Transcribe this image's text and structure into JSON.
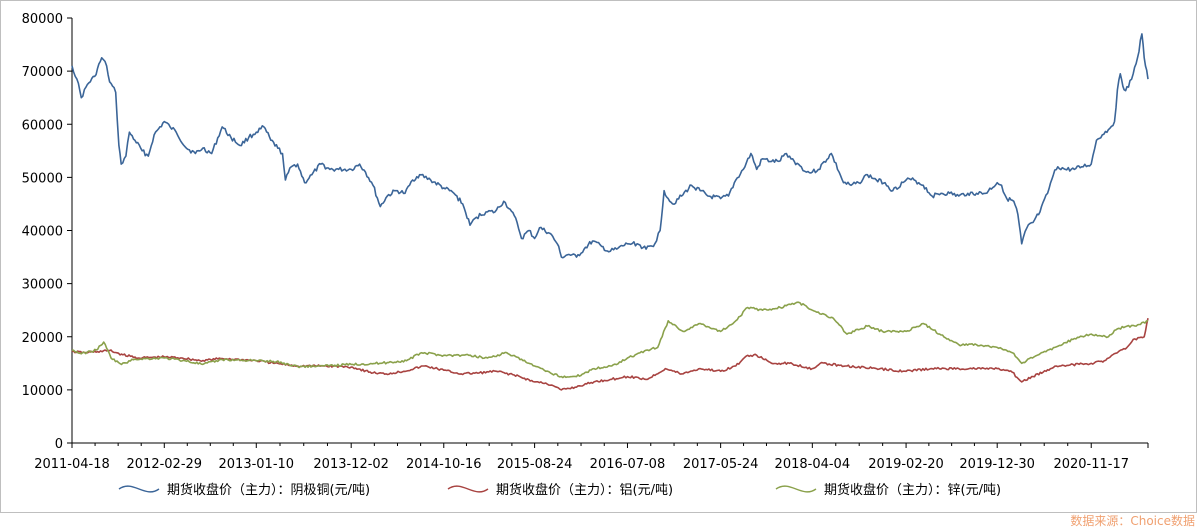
{
  "chart_data": {
    "type": "line",
    "yticks": [
      0,
      10000,
      20000,
      30000,
      40000,
      50000,
      60000,
      70000,
      80000
    ],
    "ylim": [
      0,
      80000
    ],
    "xticks": [
      "2011-04-18",
      "2012-02-29",
      "2013-01-10",
      "2013-12-02",
      "2014-10-16",
      "2015-08-24",
      "2016-07-08",
      "2017-05-24",
      "2018-04-04",
      "2019-02-20",
      "2019-12-30",
      "2020-11-17"
    ],
    "x_start": "2011-04-18",
    "x_end": "2021-05-31",
    "legend_position": "bottom",
    "grid": false,
    "series": [
      {
        "name": "期货收盘价（主力）：阴极铜(元/吨)",
        "color": "#3b6598",
        "points": [
          [
            "2011-04-18",
            71000
          ],
          [
            "2011-05-05",
            68500
          ],
          [
            "2011-05-20",
            65000
          ],
          [
            "2011-06-10",
            67500
          ],
          [
            "2011-07-05",
            69000
          ],
          [
            "2011-07-29",
            72500
          ],
          [
            "2011-08-15",
            71000
          ],
          [
            "2011-08-25",
            68000
          ],
          [
            "2011-09-15",
            66000
          ],
          [
            "2011-09-26",
            56000
          ],
          [
            "2011-10-04",
            52500
          ],
          [
            "2011-10-20",
            54000
          ],
          [
            "2011-11-01",
            58500
          ],
          [
            "2011-11-20",
            57000
          ],
          [
            "2011-12-15",
            55000
          ],
          [
            "2012-01-05",
            54000
          ],
          [
            "2012-01-25",
            58000
          ],
          [
            "2012-02-29",
            60500
          ],
          [
            "2012-03-20",
            59500
          ],
          [
            "2012-04-10",
            58500
          ],
          [
            "2012-05-15",
            55500
          ],
          [
            "2012-06-15",
            54500
          ],
          [
            "2012-07-10",
            55500
          ],
          [
            "2012-08-10",
            54500
          ],
          [
            "2012-09-15",
            59500
          ],
          [
            "2012-10-15",
            57500
          ],
          [
            "2012-11-15",
            56000
          ],
          [
            "2012-12-15",
            57500
          ],
          [
            "2013-01-10",
            58500
          ],
          [
            "2013-02-05",
            59500
          ],
          [
            "2013-03-01",
            57000
          ],
          [
            "2013-03-25",
            55500
          ],
          [
            "2013-04-10",
            54500
          ],
          [
            "2013-04-20",
            49500
          ],
          [
            "2013-05-10",
            52000
          ],
          [
            "2013-06-01",
            52500
          ],
          [
            "2013-06-25",
            49000
          ],
          [
            "2013-07-20",
            50500
          ],
          [
            "2013-08-20",
            52500
          ],
          [
            "2013-09-20",
            51500
          ],
          [
            "2013-10-20",
            51500
          ],
          [
            "2013-12-02",
            51500
          ],
          [
            "2013-12-31",
            52500
          ],
          [
            "2014-01-20",
            51000
          ],
          [
            "2014-02-15",
            48500
          ],
          [
            "2014-03-12",
            44500
          ],
          [
            "2014-04-05",
            46500
          ],
          [
            "2014-05-05",
            47500
          ],
          [
            "2014-06-05",
            47000
          ],
          [
            "2014-07-01",
            49500
          ],
          [
            "2014-07-25",
            50500
          ],
          [
            "2014-09-01",
            49500
          ],
          [
            "2014-10-16",
            48000
          ],
          [
            "2014-11-20",
            47000
          ],
          [
            "2014-12-20",
            45000
          ],
          [
            "2015-01-14",
            41000
          ],
          [
            "2015-02-05",
            42500
          ],
          [
            "2015-03-10",
            43500
          ],
          [
            "2015-04-10",
            43500
          ],
          [
            "2015-05-10",
            45500
          ],
          [
            "2015-06-01",
            44000
          ],
          [
            "2015-06-25",
            41500
          ],
          [
            "2015-07-10",
            38500
          ],
          [
            "2015-08-05",
            40000
          ],
          [
            "2015-08-24",
            38500
          ],
          [
            "2015-09-10",
            40500
          ],
          [
            "2015-10-15",
            39500
          ],
          [
            "2015-11-10",
            37500
          ],
          [
            "2015-11-24",
            35000
          ],
          [
            "2015-12-20",
            35500
          ],
          [
            "2016-01-15",
            35000
          ],
          [
            "2016-02-10",
            36500
          ],
          [
            "2016-03-10",
            38000
          ],
          [
            "2016-04-10",
            37000
          ],
          [
            "2016-05-05",
            36000
          ],
          [
            "2016-06-01",
            36500
          ],
          [
            "2016-07-08",
            37500
          ],
          [
            "2016-08-10",
            37500
          ],
          [
            "2016-09-10",
            36500
          ],
          [
            "2016-10-10",
            37500
          ],
          [
            "2016-10-28",
            40000
          ],
          [
            "2016-11-11",
            47500
          ],
          [
            "2016-11-25",
            46000
          ],
          [
            "2016-12-10",
            45000
          ],
          [
            "2017-01-10",
            46500
          ],
          [
            "2017-02-13",
            48500
          ],
          [
            "2017-03-15",
            47500
          ],
          [
            "2017-04-10",
            46500
          ],
          [
            "2017-05-24",
            46000
          ],
          [
            "2017-06-20",
            46500
          ],
          [
            "2017-07-15",
            49500
          ],
          [
            "2017-08-10",
            51500
          ],
          [
            "2017-09-05",
            54500
          ],
          [
            "2017-09-25",
            51500
          ],
          [
            "2017-10-15",
            53500
          ],
          [
            "2017-11-15",
            53000
          ],
          [
            "2017-12-10",
            53000
          ],
          [
            "2018-01-05",
            54500
          ],
          [
            "2018-02-01",
            53000
          ],
          [
            "2018-02-25",
            52000
          ],
          [
            "2018-03-15",
            51000
          ],
          [
            "2018-04-04",
            51000
          ],
          [
            "2018-04-25",
            51500
          ],
          [
            "2018-06-08",
            54500
          ],
          [
            "2018-07-05",
            51000
          ],
          [
            "2018-07-20",
            49000
          ],
          [
            "2018-08-15",
            48500
          ],
          [
            "2018-09-10",
            49000
          ],
          [
            "2018-10-10",
            50500
          ],
          [
            "2018-11-10",
            49500
          ],
          [
            "2018-12-10",
            49000
          ],
          [
            "2019-01-05",
            47500
          ],
          [
            "2019-02-20",
            49500
          ],
          [
            "2019-03-20",
            49500
          ],
          [
            "2019-04-20",
            48500
          ],
          [
            "2019-05-20",
            46500
          ],
          [
            "2019-06-20",
            47000
          ],
          [
            "2019-07-20",
            47000
          ],
          [
            "2019-08-20",
            46500
          ],
          [
            "2019-09-20",
            47000
          ],
          [
            "2019-10-20",
            47000
          ],
          [
            "2019-11-20",
            47000
          ],
          [
            "2019-12-30",
            49000
          ],
          [
            "2020-01-14",
            48500
          ],
          [
            "2020-02-01",
            46000
          ],
          [
            "2020-02-25",
            45500
          ],
          [
            "2020-03-10",
            43000
          ],
          [
            "2020-03-23",
            37500
          ],
          [
            "2020-04-10",
            40500
          ],
          [
            "2020-05-01",
            41500
          ],
          [
            "2020-05-25",
            43500
          ],
          [
            "2020-06-20",
            47000
          ],
          [
            "2020-07-10",
            50500
          ],
          [
            "2020-07-25",
            52000
          ],
          [
            "2020-08-20",
            51500
          ],
          [
            "2020-09-20",
            51500
          ],
          [
            "2020-10-15",
            52000
          ],
          [
            "2020-11-17",
            52500
          ],
          [
            "2020-12-05",
            57000
          ],
          [
            "2020-12-25",
            58000
          ],
          [
            "2021-01-15",
            59000
          ],
          [
            "2021-02-05",
            60500
          ],
          [
            "2021-02-15",
            66500
          ],
          [
            "2021-02-25",
            69500
          ],
          [
            "2021-03-10",
            66500
          ],
          [
            "2021-03-25",
            67000
          ],
          [
            "2021-04-10",
            69500
          ],
          [
            "2021-04-25",
            72500
          ],
          [
            "2021-05-10",
            77000
          ],
          [
            "2021-05-18",
            72500
          ],
          [
            "2021-05-31",
            68500
          ]
        ]
      },
      {
        "name": "期货收盘价（主力）：铝(元/吨)",
        "color": "#a84341",
        "points": [
          [
            "2011-04-18",
            17200
          ],
          [
            "2011-06-01",
            17000
          ],
          [
            "2011-07-15",
            17200
          ],
          [
            "2011-08-25",
            17400
          ],
          [
            "2011-10-10",
            16600
          ],
          [
            "2011-12-01",
            16000
          ],
          [
            "2012-02-29",
            16200
          ],
          [
            "2012-05-01",
            16000
          ],
          [
            "2012-07-01",
            15500
          ],
          [
            "2012-09-15",
            15900
          ],
          [
            "2013-01-10",
            15500
          ],
          [
            "2013-03-15",
            15000
          ],
          [
            "2013-06-01",
            14500
          ],
          [
            "2013-09-01",
            14500
          ],
          [
            "2013-12-02",
            14300
          ],
          [
            "2014-02-15",
            13200
          ],
          [
            "2014-04-01",
            13000
          ],
          [
            "2014-06-01",
            13500
          ],
          [
            "2014-08-10",
            14500
          ],
          [
            "2014-10-16",
            13700
          ],
          [
            "2014-12-15",
            13000
          ],
          [
            "2015-02-15",
            13200
          ],
          [
            "2015-04-15",
            13500
          ],
          [
            "2015-06-15",
            12800
          ],
          [
            "2015-08-24",
            11500
          ],
          [
            "2015-10-01",
            11300
          ],
          [
            "2015-11-24",
            10000
          ],
          [
            "2016-01-10",
            10500
          ],
          [
            "2016-03-15",
            11500
          ],
          [
            "2016-05-15",
            12000
          ],
          [
            "2016-07-08",
            12500
          ],
          [
            "2016-09-15",
            12000
          ],
          [
            "2016-11-15",
            14000
          ],
          [
            "2017-01-10",
            13000
          ],
          [
            "2017-03-15",
            14000
          ],
          [
            "2017-05-24",
            13500
          ],
          [
            "2017-07-15",
            14500
          ],
          [
            "2017-08-25",
            16500
          ],
          [
            "2017-09-25",
            16500
          ],
          [
            "2017-11-15",
            15000
          ],
          [
            "2018-01-15",
            15000
          ],
          [
            "2018-04-04",
            14000
          ],
          [
            "2018-05-01",
            15000
          ],
          [
            "2018-08-01",
            14500
          ],
          [
            "2018-11-10",
            14000
          ],
          [
            "2019-02-20",
            13500
          ],
          [
            "2019-05-20",
            14000
          ],
          [
            "2019-08-20",
            14000
          ],
          [
            "2019-12-30",
            14000
          ],
          [
            "2020-02-20",
            13300
          ],
          [
            "2020-03-23",
            11500
          ],
          [
            "2020-05-01",
            12500
          ],
          [
            "2020-07-20",
            14500
          ],
          [
            "2020-11-17",
            15000
          ],
          [
            "2021-01-01",
            15500
          ],
          [
            "2021-02-15",
            17000
          ],
          [
            "2021-03-20",
            18000
          ],
          [
            "2021-04-10",
            19500
          ],
          [
            "2021-05-18",
            20000
          ],
          [
            "2021-05-31",
            23500
          ]
        ]
      },
      {
        "name": "期货收盘价（主力）：锌(元/吨)",
        "color": "#8aa14b",
        "points": [
          [
            "2011-04-18",
            17500
          ],
          [
            "2011-05-20",
            16800
          ],
          [
            "2011-07-10",
            17500
          ],
          [
            "2011-08-05",
            19000
          ],
          [
            "2011-08-30",
            16000
          ],
          [
            "2011-10-05",
            14800
          ],
          [
            "2011-11-20",
            15800
          ],
          [
            "2012-02-29",
            16000
          ],
          [
            "2012-05-10",
            15500
          ],
          [
            "2012-07-10",
            14800
          ],
          [
            "2012-09-15",
            15700
          ],
          [
            "2013-01-10",
            15500
          ],
          [
            "2013-03-20",
            15300
          ],
          [
            "2013-06-01",
            14400
          ],
          [
            "2013-09-01",
            14500
          ],
          [
            "2013-12-02",
            14800
          ],
          [
            "2014-03-10",
            15000
          ],
          [
            "2014-06-10",
            15500
          ],
          [
            "2014-08-01",
            17000
          ],
          [
            "2014-10-16",
            16500
          ],
          [
            "2015-01-10",
            16500
          ],
          [
            "2015-03-15",
            16000
          ],
          [
            "2015-05-20",
            17000
          ],
          [
            "2015-07-15",
            15500
          ],
          [
            "2015-08-24",
            14500
          ],
          [
            "2015-10-01",
            13500
          ],
          [
            "2015-11-24",
            12500
          ],
          [
            "2016-01-15",
            12500
          ],
          [
            "2016-03-15",
            14000
          ],
          [
            "2016-05-15",
            14500
          ],
          [
            "2016-07-08",
            16000
          ],
          [
            "2016-09-15",
            17500
          ],
          [
            "2016-10-20",
            18000
          ],
          [
            "2016-11-25",
            23000
          ],
          [
            "2017-01-15",
            21000
          ],
          [
            "2017-03-15",
            22500
          ],
          [
            "2017-05-24",
            21000
          ],
          [
            "2017-07-15",
            23000
          ],
          [
            "2017-08-25",
            25500
          ],
          [
            "2017-10-15",
            25000
          ],
          [
            "2017-12-15",
            25500
          ],
          [
            "2018-02-15",
            26500
          ],
          [
            "2018-04-04",
            25000
          ],
          [
            "2018-06-15",
            23500
          ],
          [
            "2018-08-01",
            20500
          ],
          [
            "2018-10-10",
            22000
          ],
          [
            "2018-12-01",
            21000
          ],
          [
            "2019-02-20",
            21000
          ],
          [
            "2019-04-20",
            22500
          ],
          [
            "2019-06-15",
            20500
          ],
          [
            "2019-08-20",
            18500
          ],
          [
            "2019-10-20",
            18500
          ],
          [
            "2019-12-30",
            18000
          ],
          [
            "2020-02-20",
            17000
          ],
          [
            "2020-03-23",
            15000
          ],
          [
            "2020-05-15",
            16500
          ],
          [
            "2020-07-15",
            18000
          ],
          [
            "2020-09-15",
            19500
          ],
          [
            "2020-11-17",
            20500
          ],
          [
            "2021-01-15",
            20000
          ],
          [
            "2021-02-15",
            21500
          ],
          [
            "2021-03-20",
            22000
          ],
          [
            "2021-04-20",
            22000
          ],
          [
            "2021-05-31",
            23000
          ]
        ]
      }
    ]
  },
  "source_text": "数据来源：Choice数据"
}
